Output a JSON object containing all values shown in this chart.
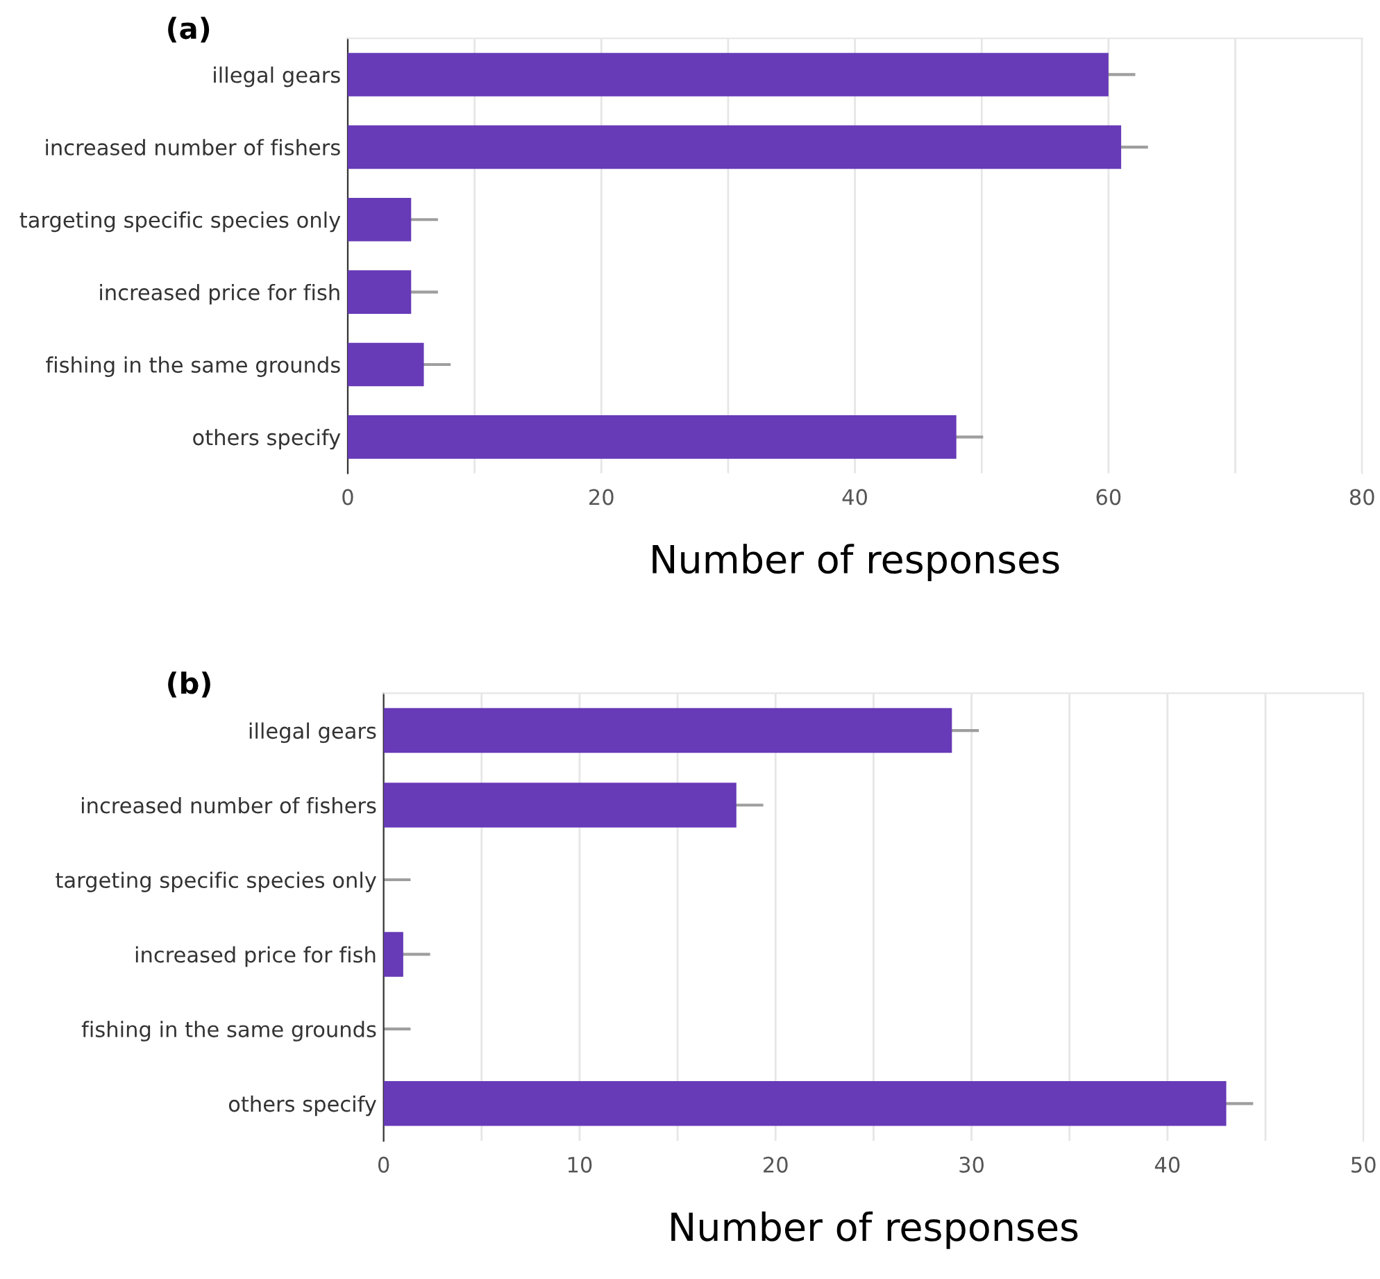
{
  "chart_data": [
    {
      "type": "bar",
      "orientation": "horizontal",
      "title": "(a)",
      "xlabel": "Number of responses",
      "categories": [
        "illegal gears",
        "increased number of fishers",
        "targeting specific species only",
        "increased price for fish",
        "fishing in the same grounds",
        "others specify"
      ],
      "values": [
        60,
        61,
        5,
        5,
        6,
        48
      ],
      "errors": [
        2,
        2,
        2,
        2,
        2,
        2
      ],
      "color": "#673ab7",
      "xlim": [
        0,
        80
      ],
      "xticks": [
        0,
        {
          "value": 10,
          "label": null
        },
        20,
        {
          "value": 30,
          "label": null
        },
        40,
        {
          "value": 50,
          "label": null
        },
        60,
        {
          "value": 70,
          "label": null
        },
        80
      ],
      "grid": "x"
    },
    {
      "type": "bar",
      "orientation": "horizontal",
      "title": "(b)",
      "xlabel": "Number of responses",
      "categories": [
        "illegal gears",
        "increased number of fishers",
        "targeting specific species only",
        "increased price for fish",
        "fishing in the same grounds",
        "others specify"
      ],
      "values": [
        29,
        18,
        0,
        1,
        0,
        43
      ],
      "errors": [
        1.3,
        1.3,
        1.3,
        1.3,
        1.3,
        1.3
      ],
      "color": "#673ab7",
      "xlim": [
        0,
        50
      ],
      "xticks": [
        0,
        {
          "value": 5,
          "label": null
        },
        10,
        {
          "value": 15,
          "label": null
        },
        20,
        {
          "value": 25,
          "label": null
        },
        30,
        {
          "value": 35,
          "label": null
        },
        40,
        {
          "value": 45,
          "label": null
        },
        50
      ],
      "grid": "x"
    }
  ]
}
